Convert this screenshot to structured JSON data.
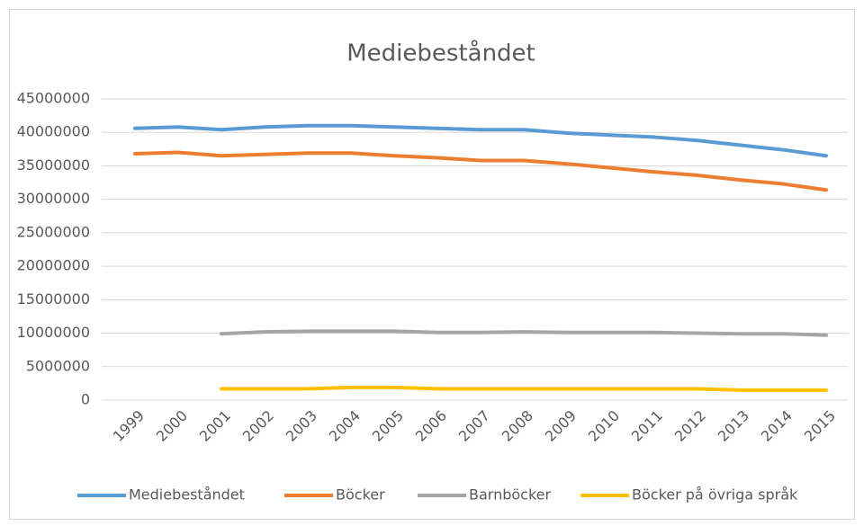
{
  "chart_data": {
    "type": "line",
    "title": "Mediebeståndet",
    "categories": [
      "1999",
      "2000",
      "2001",
      "2002",
      "2003",
      "2004",
      "2005",
      "2006",
      "2007",
      "2008",
      "2009",
      "2010",
      "2011",
      "2012",
      "2013",
      "2014",
      "2015"
    ],
    "series": [
      {
        "name": "Mediebeståndet",
        "color": "#5b9bd5",
        "values": [
          40600000,
          40800000,
          40400000,
          40800000,
          41000000,
          41000000,
          40800000,
          40600000,
          40400000,
          40400000,
          39900000,
          39600000,
          39300000,
          38800000,
          38100000,
          37400000,
          36500000
        ]
      },
      {
        "name": "Böcker",
        "color": "#ed7d31",
        "values": [
          36800000,
          37000000,
          36500000,
          36700000,
          36900000,
          36900000,
          36500000,
          36200000,
          35800000,
          35800000,
          35300000,
          34700000,
          34100000,
          33600000,
          32900000,
          32300000,
          31400000
        ]
      },
      {
        "name": "Barnböcker",
        "color": "#a5a5a5",
        "values": [
          null,
          null,
          9900000,
          10200000,
          10300000,
          10300000,
          10300000,
          10100000,
          10100000,
          10200000,
          10100000,
          10100000,
          10100000,
          10000000,
          9900000,
          9900000,
          9700000
        ]
      },
      {
        "name": "Böcker på övriga språk",
        "color": "#ffc000",
        "values": [
          null,
          null,
          1700000,
          1700000,
          1700000,
          1900000,
          1900000,
          1700000,
          1700000,
          1700000,
          1700000,
          1700000,
          1700000,
          1700000,
          1500000,
          1500000,
          1500000
        ]
      }
    ],
    "ylim": [
      0,
      45000000
    ],
    "yticks": [
      0,
      5000000,
      10000000,
      15000000,
      20000000,
      25000000,
      30000000,
      35000000,
      40000000,
      45000000
    ],
    "grid": true,
    "legend": "bottom"
  }
}
